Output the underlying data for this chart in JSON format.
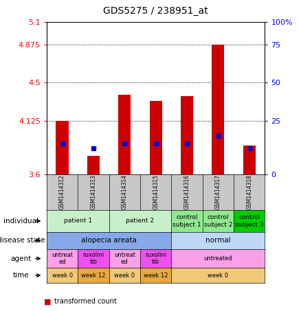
{
  "title": "GDS5275 / 238951_at",
  "samples": [
    "GSM1414312",
    "GSM1414313",
    "GSM1414314",
    "GSM1414315",
    "GSM1414316",
    "GSM1414317",
    "GSM1414318"
  ],
  "red_values": [
    4.125,
    3.78,
    4.38,
    4.32,
    4.37,
    4.875,
    3.88
  ],
  "blue_values": [
    20,
    17,
    20,
    20,
    20,
    25,
    17
  ],
  "ymin": 3.6,
  "ymax": 5.1,
  "bar_color": "#cc0000",
  "blue_color": "#0000cc",
  "bg_color": "#ffffff",
  "sample_bg_color": "#c8c8c8",
  "individual_data": [
    [
      "patient 1",
      0,
      2,
      "#c8f0c8"
    ],
    [
      "patient 2",
      2,
      4,
      "#c8f0c8"
    ],
    [
      "control\nsubject 1",
      4,
      5,
      "#90e890"
    ],
    [
      "control\nsubject 2",
      5,
      6,
      "#90e890"
    ],
    [
      "control\nsubject 3",
      6,
      7,
      "#00cc00"
    ]
  ],
  "disease_data": [
    [
      "alopecia areata",
      0,
      4,
      "#87a8e8"
    ],
    [
      "normal",
      4,
      7,
      "#c0d8f8"
    ]
  ],
  "agent_data": [
    [
      "untreat\ned",
      0,
      1,
      "#f8a0e8"
    ],
    [
      "ruxolini\ntib",
      1,
      2,
      "#ee50ee"
    ],
    [
      "untreat\ned",
      2,
      3,
      "#f8a0e8"
    ],
    [
      "ruxolini\ntib",
      3,
      4,
      "#ee50ee"
    ],
    [
      "untreated",
      4,
      7,
      "#f8a0e8"
    ]
  ],
  "time_data": [
    [
      "week 0",
      0,
      1,
      "#f0c878"
    ],
    [
      "week 12",
      1,
      2,
      "#e8a840"
    ],
    [
      "week 0",
      2,
      3,
      "#f0c878"
    ],
    [
      "week 12",
      3,
      4,
      "#e8a840"
    ],
    [
      "week 0",
      4,
      7,
      "#f0c878"
    ]
  ],
  "row_labels": [
    "individual",
    "disease state",
    "agent",
    "time"
  ]
}
